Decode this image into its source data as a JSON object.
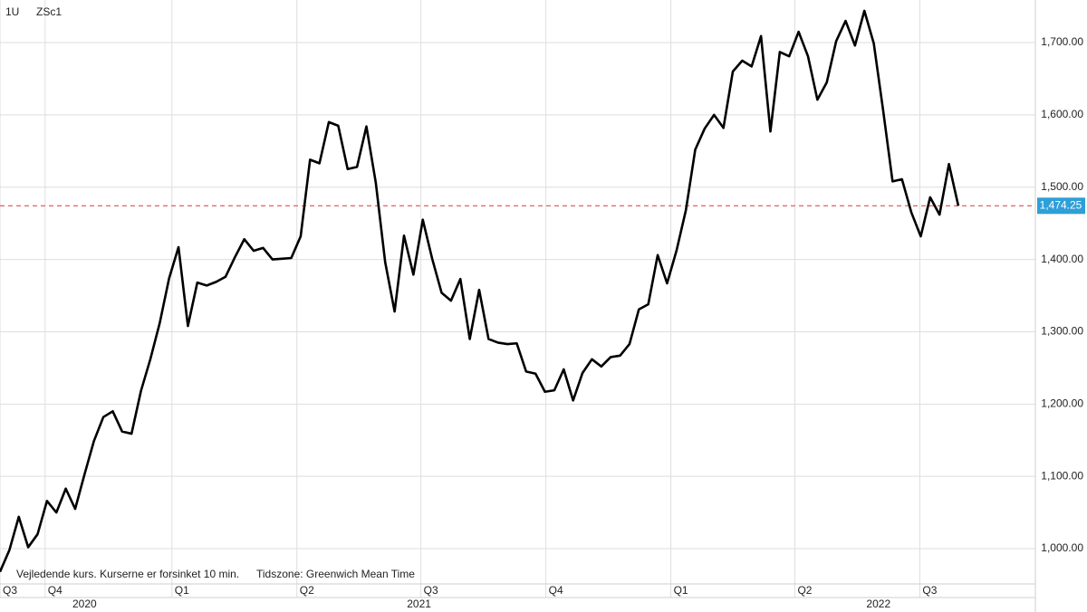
{
  "chart_data": {
    "type": "line",
    "interval": "1U",
    "symbol": "ZSc1",
    "notes": [
      "Vejledende kurs. Kurserne er forsinket 10 min.",
      "Tidszone: Greenwich Mean Time"
    ],
    "color": "#000000",
    "grid": true,
    "values": [
      968,
      998,
      1044,
      1002,
      1020,
      1066,
      1050,
      1083,
      1055,
      1103,
      1149,
      1182,
      1190,
      1162,
      1159,
      1218,
      1262,
      1312,
      1374,
      1417,
      1308,
      1368,
      1364,
      1369,
      1376,
      1403,
      1428,
      1412,
      1416,
      1400,
      1401,
      1402,
      1432,
      1538,
      1533,
      1590,
      1585,
      1525,
      1528,
      1584,
      1506,
      1396,
      1328,
      1433,
      1379,
      1455,
      1401,
      1354,
      1343,
      1373,
      1290,
      1358,
      1290,
      1285,
      1283,
      1284,
      1245,
      1242,
      1217,
      1219,
      1248,
      1205,
      1243,
      1262,
      1252,
      1265,
      1267,
      1283,
      1331,
      1338,
      1406,
      1367,
      1412,
      1468,
      1552,
      1581,
      1600,
      1582,
      1660,
      1675,
      1667,
      1709,
      1577,
      1687,
      1681,
      1715,
      1681,
      1621,
      1645,
      1702,
      1730,
      1696,
      1744,
      1699,
      1606,
      1508,
      1511,
      1465,
      1432,
      1486,
      1462,
      1532,
      1474.25
    ],
    "xlim": [
      0,
      110.2
    ],
    "xticks": [
      {
        "value": 0,
        "label": "Q3"
      },
      {
        "value": 4.8,
        "label": "Q4"
      },
      {
        "value": 18.3,
        "label": "Q1"
      },
      {
        "value": 31.6,
        "label": "Q2"
      },
      {
        "value": 44.8,
        "label": "Q3"
      },
      {
        "value": 58.1,
        "label": "Q4"
      },
      {
        "value": 71.4,
        "label": "Q1"
      },
      {
        "value": 84.6,
        "label": "Q2"
      },
      {
        "value": 97.9,
        "label": "Q3"
      }
    ],
    "year_labels": [
      {
        "value": 9,
        "label": "2020"
      },
      {
        "value": 44.6,
        "label": "2021"
      },
      {
        "value": 93.5,
        "label": "2022"
      }
    ],
    "ylim": [
      951.2,
      1758.9
    ],
    "yticks": [
      {
        "value": 1000,
        "label": "1,000.00"
      },
      {
        "value": 1100,
        "label": "1,100.00"
      },
      {
        "value": 1200,
        "label": "1,200.00"
      },
      {
        "value": 1300,
        "label": "1,300.00"
      },
      {
        "value": 1400,
        "label": "1,400.00"
      },
      {
        "value": 1500,
        "label": "1,500.00"
      },
      {
        "value": 1600,
        "label": "1,600.00"
      },
      {
        "value": 1700,
        "label": "1,700.00"
      }
    ],
    "reference_line": {
      "value": 1474.25,
      "label": "1,474.25",
      "color": "#d9534f",
      "label_color": "#2e9fd8"
    }
  }
}
